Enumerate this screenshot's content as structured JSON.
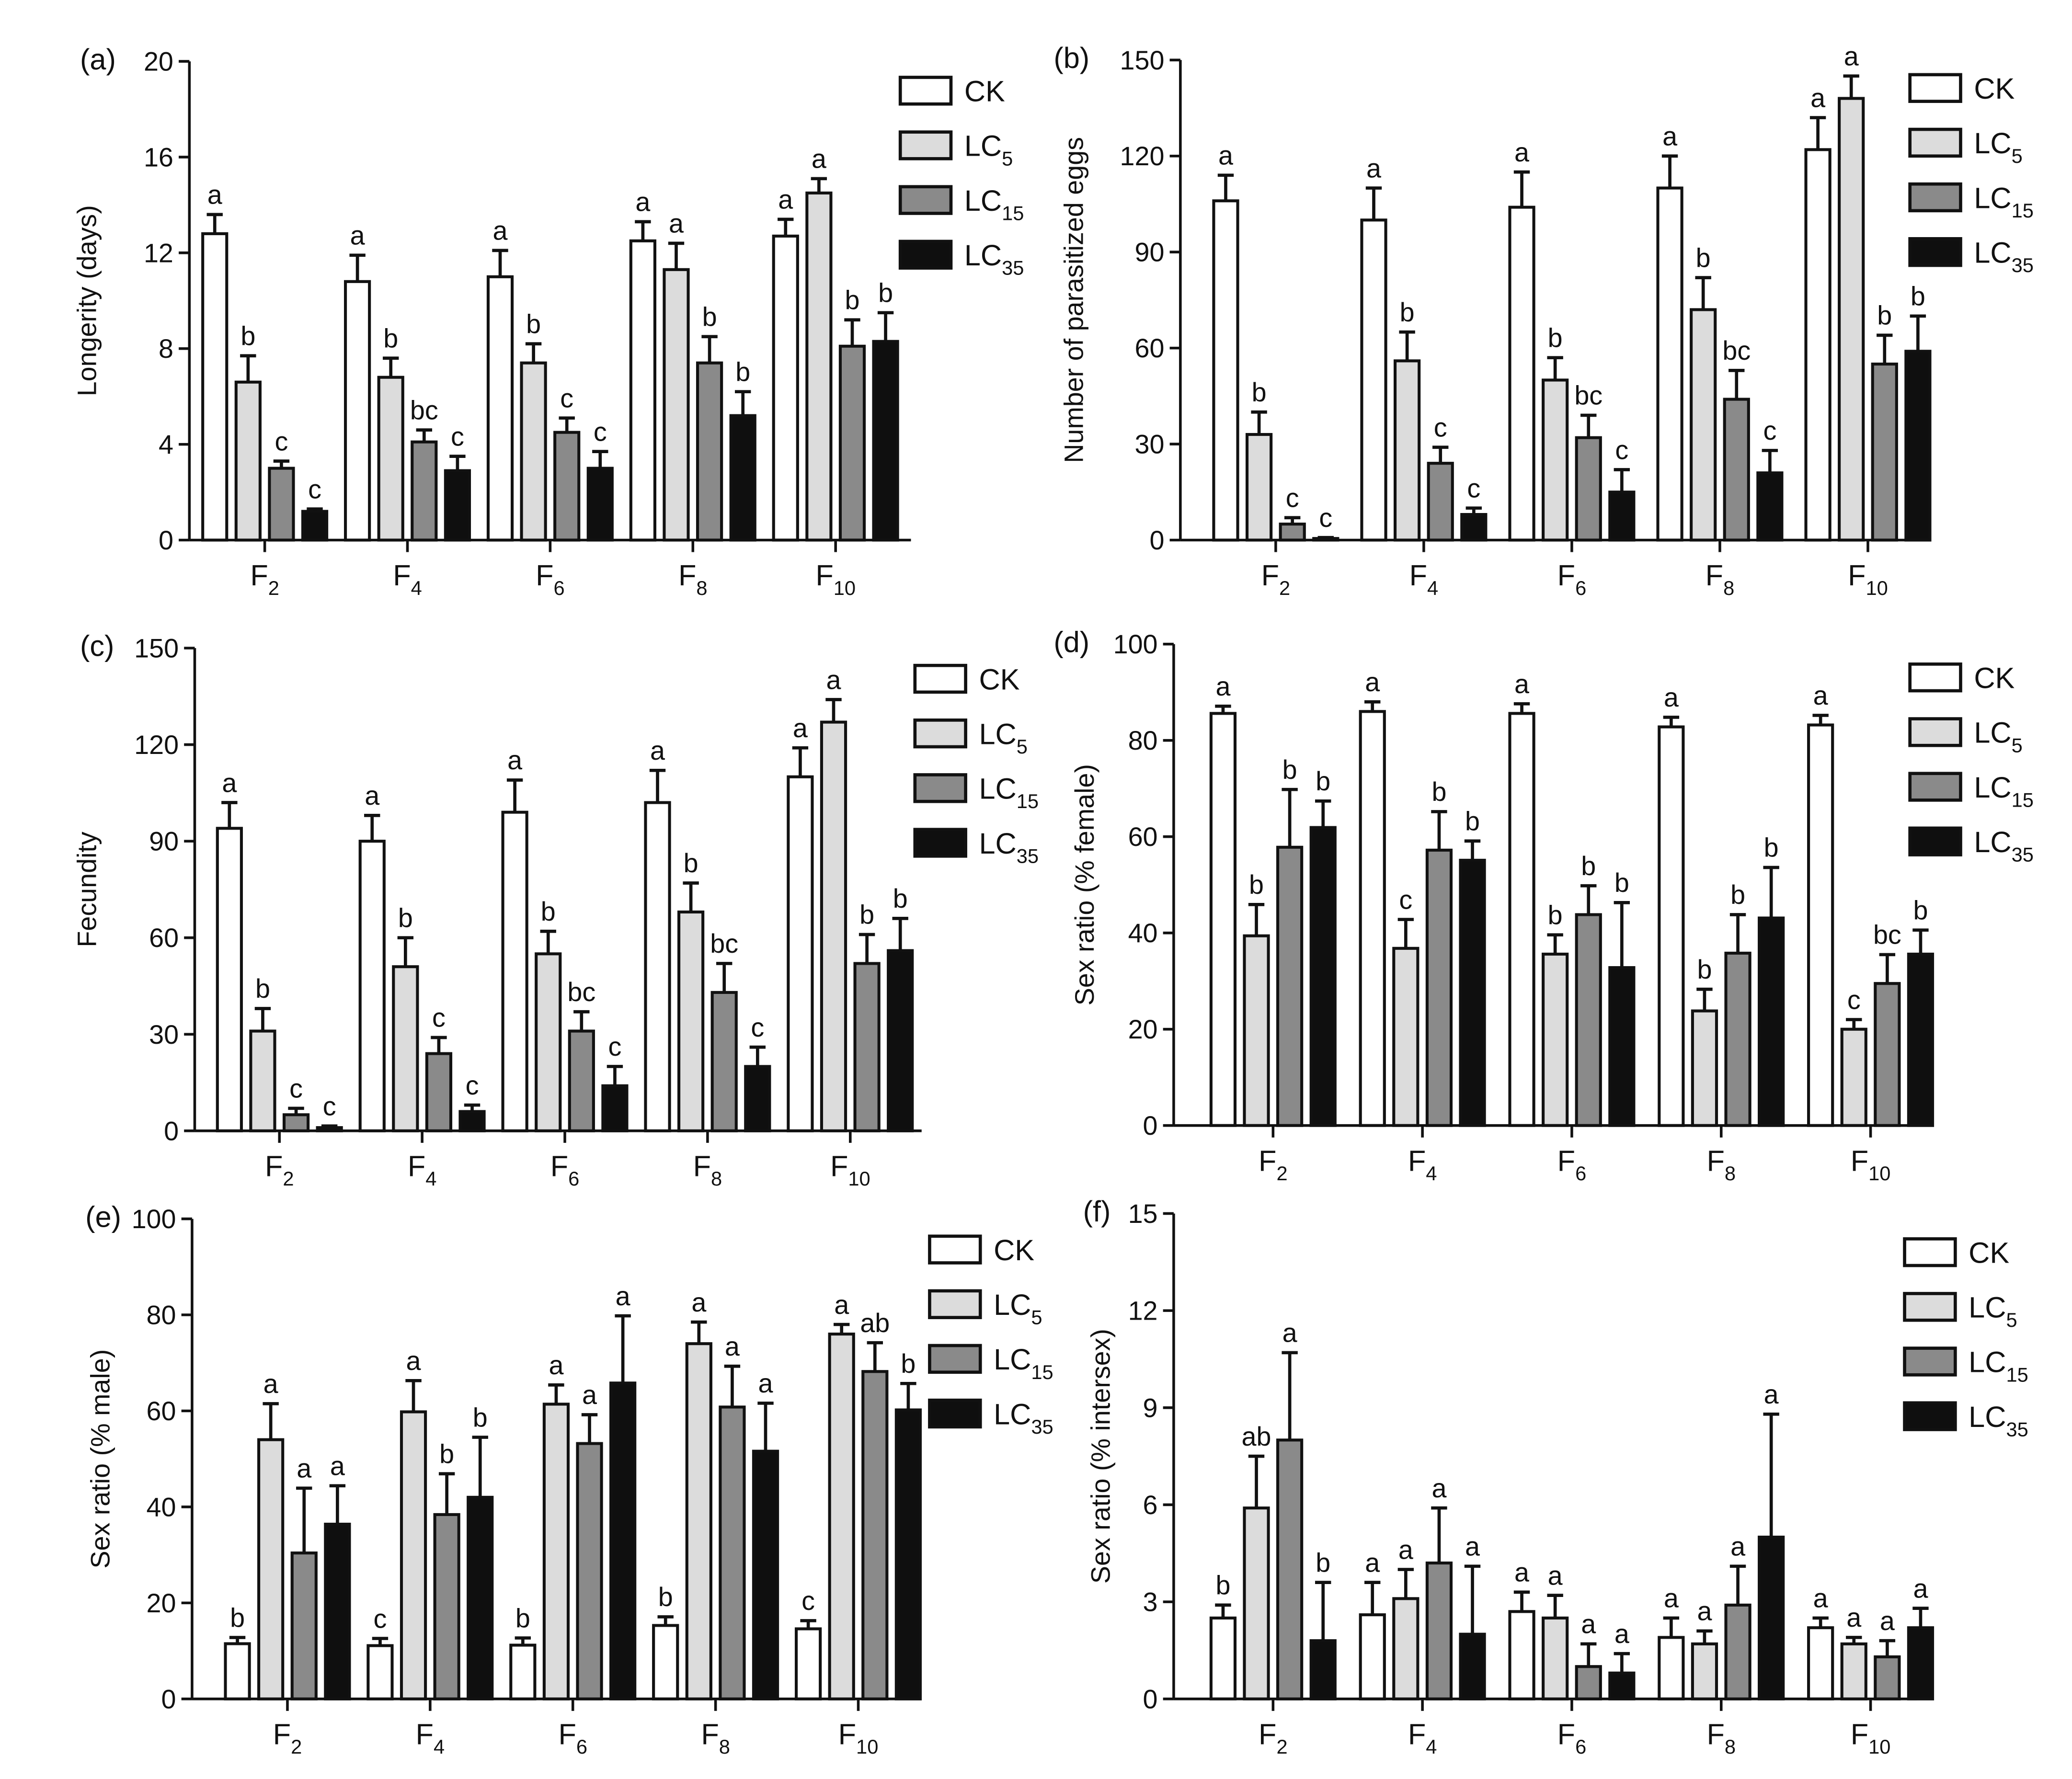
{
  "figure": {
    "series_names": [
      "CK",
      "LC5",
      "LC15",
      "LC35"
    ],
    "series_colors": [
      "#ffffff",
      "#dcdcdc",
      "#8a8a8a",
      "#0f0f0f"
    ],
    "categories": [
      "F2",
      "F4",
      "F6",
      "F8",
      "F10"
    ]
  },
  "chart_data": [
    {
      "type": "bar",
      "panel_label": "(a)",
      "title": "",
      "xlabel": "",
      "ylabel": "Longerity (days)",
      "ylim": [
        0,
        20
      ],
      "yticks": [
        0,
        4,
        8,
        12,
        16,
        20
      ],
      "legend_position": "top-right",
      "categories": [
        {
          "label": "F",
          "sub": "2"
        },
        {
          "label": "F",
          "sub": "4"
        },
        {
          "label": "F",
          "sub": "6"
        },
        {
          "label": "F",
          "sub": "8"
        },
        {
          "label": "F",
          "sub": "10"
        }
      ],
      "series": [
        {
          "name": "CK",
          "label": "CK",
          "sub": "",
          "values": [
            12.8,
            10.8,
            11.0,
            12.5,
            12.7
          ],
          "errors": [
            0.8,
            1.1,
            1.1,
            0.8,
            0.7
          ],
          "letters": [
            "a",
            "a",
            "a",
            "a",
            "a"
          ]
        },
        {
          "name": "LC5",
          "label": "LC",
          "sub": "5",
          "values": [
            6.6,
            6.8,
            7.4,
            11.3,
            14.5
          ],
          "errors": [
            1.1,
            0.8,
            0.8,
            1.1,
            0.6
          ],
          "letters": [
            "b",
            "b",
            "b",
            "a",
            "a"
          ]
        },
        {
          "name": "LC15",
          "label": "LC",
          "sub": "15",
          "values": [
            3.0,
            4.1,
            4.5,
            7.4,
            8.1
          ],
          "errors": [
            0.3,
            0.5,
            0.6,
            1.1,
            1.1
          ],
          "letters": [
            "c",
            "bc",
            "c",
            "b",
            "b"
          ]
        },
        {
          "name": "LC35",
          "label": "LC",
          "sub": "35",
          "values": [
            1.2,
            2.9,
            3.0,
            5.2,
            8.3
          ],
          "errors": [
            0.1,
            0.6,
            0.7,
            1.0,
            1.2
          ],
          "letters": [
            "c",
            "c",
            "c",
            "b",
            "b"
          ]
        }
      ]
    },
    {
      "type": "bar",
      "panel_label": "(b)",
      "title": "",
      "xlabel": "",
      "ylabel": "Number of parasitized eggs",
      "ylim": [
        0,
        150
      ],
      "yticks": [
        0,
        30,
        60,
        90,
        120,
        150
      ],
      "legend_position": "top-right",
      "categories": [
        {
          "label": "F",
          "sub": "2"
        },
        {
          "label": "F",
          "sub": "4"
        },
        {
          "label": "F",
          "sub": "6"
        },
        {
          "label": "F",
          "sub": "8"
        },
        {
          "label": "F",
          "sub": "10"
        }
      ],
      "series": [
        {
          "name": "CK",
          "label": "CK",
          "sub": "",
          "values": [
            106,
            100,
            104,
            110,
            122
          ],
          "errors": [
            8,
            10,
            11,
            10,
            10
          ],
          "letters": [
            "a",
            "a",
            "a",
            "a",
            "a"
          ]
        },
        {
          "name": "LC5",
          "label": "LC",
          "sub": "5",
          "values": [
            33,
            56,
            50,
            72,
            138
          ],
          "errors": [
            7,
            9,
            7,
            10,
            7
          ],
          "letters": [
            "b",
            "b",
            "b",
            "b",
            "a"
          ]
        },
        {
          "name": "LC15",
          "label": "LC",
          "sub": "15",
          "values": [
            5,
            24,
            32,
            44,
            55
          ],
          "errors": [
            2,
            5,
            7,
            9,
            9
          ],
          "letters": [
            "c",
            "c",
            "bc",
            "bc",
            "b"
          ]
        },
        {
          "name": "LC35",
          "label": "LC",
          "sub": "35",
          "values": [
            0.5,
            8,
            15,
            21,
            59
          ],
          "errors": [
            0.3,
            2,
            7,
            7,
            11
          ],
          "letters": [
            "c",
            "c",
            "c",
            "c",
            "b"
          ]
        }
      ]
    },
    {
      "type": "bar",
      "panel_label": "(c)",
      "title": "",
      "xlabel": "",
      "ylabel": "Fecundity",
      "ylim": [
        0,
        150
      ],
      "yticks": [
        0,
        30,
        60,
        90,
        120,
        150
      ],
      "legend_position": "top-right",
      "categories": [
        {
          "label": "F",
          "sub": "2"
        },
        {
          "label": "F",
          "sub": "4"
        },
        {
          "label": "F",
          "sub": "6"
        },
        {
          "label": "F",
          "sub": "8"
        },
        {
          "label": "F",
          "sub": "10"
        }
      ],
      "series": [
        {
          "name": "CK",
          "label": "CK",
          "sub": "",
          "values": [
            94,
            90,
            99,
            102,
            110
          ],
          "errors": [
            8,
            8,
            10,
            10,
            9
          ],
          "letters": [
            "a",
            "a",
            "a",
            "a",
            "a"
          ]
        },
        {
          "name": "LC5",
          "label": "LC",
          "sub": "5",
          "values": [
            31,
            51,
            55,
            68,
            127
          ],
          "errors": [
            7,
            9,
            7,
            9,
            7
          ],
          "letters": [
            "b",
            "b",
            "b",
            "b",
            "a"
          ]
        },
        {
          "name": "LC15",
          "label": "LC",
          "sub": "15",
          "values": [
            5,
            24,
            31,
            43,
            52
          ],
          "errors": [
            2,
            5,
            6,
            9,
            9
          ],
          "letters": [
            "c",
            "c",
            "bc",
            "bc",
            "b"
          ]
        },
        {
          "name": "LC35",
          "label": "LC",
          "sub": "35",
          "values": [
            1,
            6,
            14,
            20,
            56
          ],
          "errors": [
            0.5,
            2,
            6,
            6,
            10
          ],
          "letters": [
            "c",
            "c",
            "c",
            "c",
            "b"
          ]
        }
      ]
    },
    {
      "type": "bar",
      "panel_label": "(d)",
      "title": "",
      "xlabel": "",
      "ylabel": "Sex ratio (% female)",
      "ylim": [
        0,
        100
      ],
      "yticks": [
        0,
        20,
        40,
        60,
        80,
        100
      ],
      "legend_position": "top-right",
      "categories": [
        {
          "label": "F",
          "sub": "2"
        },
        {
          "label": "F",
          "sub": "4"
        },
        {
          "label": "F",
          "sub": "6"
        },
        {
          "label": "F",
          "sub": "8"
        },
        {
          "label": "F",
          "sub": "10"
        }
      ],
      "series": [
        {
          "name": "CK",
          "label": "CK",
          "sub": "",
          "values": [
            85.6,
            86.0,
            85.6,
            82.8,
            83.2
          ],
          "errors": [
            1.5,
            2,
            2,
            2,
            2
          ],
          "letters": [
            "a",
            "a",
            "a",
            "a",
            "a"
          ]
        },
        {
          "name": "LC5",
          "label": "LC",
          "sub": "5",
          "values": [
            39.4,
            36.8,
            35.6,
            23.8,
            20.0
          ],
          "errors": [
            6.5,
            6,
            4,
            4.5,
            2
          ],
          "letters": [
            "b",
            "c",
            "b",
            "b",
            "c"
          ]
        },
        {
          "name": "LC15",
          "label": "LC",
          "sub": "15",
          "values": [
            57.8,
            57.2,
            43.8,
            35.8,
            29.5
          ],
          "errors": [
            12,
            8,
            6,
            8,
            6
          ],
          "letters": [
            "b",
            "b",
            "b",
            "b",
            "bc"
          ]
        },
        {
          "name": "LC35",
          "label": "LC",
          "sub": "35",
          "values": [
            61.9,
            55.1,
            32.8,
            43.1,
            35.6
          ],
          "errors": [
            5.5,
            4,
            13.5,
            10.5,
            5
          ],
          "letters": [
            "b",
            "b",
            "b",
            "b",
            "b"
          ]
        }
      ]
    },
    {
      "type": "bar",
      "panel_label": "(e)",
      "title": "",
      "xlabel": "",
      "ylabel": "Sex ratio (% male)",
      "ylim": [
        0,
        100
      ],
      "yticks": [
        0,
        20,
        40,
        60,
        80,
        100
      ],
      "legend_position": "top-right",
      "categories": [
        {
          "label": "F",
          "sub": "2"
        },
        {
          "label": "F",
          "sub": "4"
        },
        {
          "label": "F",
          "sub": "6"
        },
        {
          "label": "F",
          "sub": "8"
        },
        {
          "label": "F",
          "sub": "10"
        }
      ],
      "series": [
        {
          "name": "CK",
          "label": "CK",
          "sub": "",
          "values": [
            11.5,
            11.1,
            11.2,
            15.3,
            14.6
          ],
          "errors": [
            1.3,
            1.5,
            1.5,
            1.8,
            1.7
          ],
          "letters": [
            "b",
            "c",
            "b",
            "b",
            "c"
          ]
        },
        {
          "name": "LC5",
          "label": "LC",
          "sub": "5",
          "values": [
            54.0,
            59.8,
            61.4,
            74.0,
            76.0
          ],
          "errors": [
            7.5,
            6.5,
            4,
            4.5,
            2
          ],
          "letters": [
            "a",
            "a",
            "a",
            "a",
            "a"
          ]
        },
        {
          "name": "LC15",
          "label": "LC",
          "sub": "15",
          "values": [
            30.4,
            38.4,
            53.2,
            60.8,
            68.2
          ],
          "errors": [
            13.5,
            8.5,
            6,
            8.5,
            6
          ],
          "letters": [
            "a",
            "b",
            "a",
            "a",
            "ab"
          ]
        },
        {
          "name": "LC35",
          "label": "LC",
          "sub": "35",
          "values": [
            36.4,
            42.0,
            65.8,
            51.6,
            60.2
          ],
          "errors": [
            8,
            12.5,
            14,
            10,
            5.5
          ],
          "letters": [
            "a",
            "b",
            "a",
            "a",
            "b"
          ]
        }
      ]
    },
    {
      "type": "bar",
      "panel_label": "(f)",
      "title": "",
      "xlabel": "",
      "ylabel": "Sex ratio (% intersex)",
      "ylim": [
        0,
        15
      ],
      "yticks": [
        0,
        3,
        6,
        9,
        12,
        15
      ],
      "legend_position": "top-right",
      "categories": [
        {
          "label": "F",
          "sub": "2"
        },
        {
          "label": "F",
          "sub": "4"
        },
        {
          "label": "F",
          "sub": "6"
        },
        {
          "label": "F",
          "sub": "8"
        },
        {
          "label": "F",
          "sub": "10"
        }
      ],
      "series": [
        {
          "name": "CK",
          "label": "CK",
          "sub": "",
          "values": [
            2.5,
            2.6,
            2.7,
            1.9,
            2.2
          ],
          "errors": [
            0.4,
            1.0,
            0.6,
            0.6,
            0.3
          ],
          "letters": [
            "b",
            "a",
            "a",
            "a",
            "a"
          ]
        },
        {
          "name": "LC5",
          "label": "LC",
          "sub": "5",
          "values": [
            5.9,
            3.1,
            2.5,
            1.7,
            1.7
          ],
          "errors": [
            1.6,
            0.9,
            0.7,
            0.4,
            0.2
          ],
          "letters": [
            "ab",
            "a",
            "a",
            "a",
            "a"
          ]
        },
        {
          "name": "LC15",
          "label": "LC",
          "sub": "15",
          "values": [
            8.0,
            4.2,
            1.0,
            2.9,
            1.3
          ],
          "errors": [
            2.7,
            1.7,
            0.7,
            1.2,
            0.5
          ],
          "letters": [
            "a",
            "a",
            "a",
            "a",
            "a"
          ]
        },
        {
          "name": "LC35",
          "label": "LC",
          "sub": "35",
          "values": [
            1.8,
            2.0,
            0.8,
            5.0,
            2.2
          ],
          "errors": [
            1.8,
            2.1,
            0.6,
            3.8,
            0.6
          ],
          "letters": [
            "b",
            "a",
            "a",
            "a",
            "a"
          ]
        }
      ]
    }
  ]
}
